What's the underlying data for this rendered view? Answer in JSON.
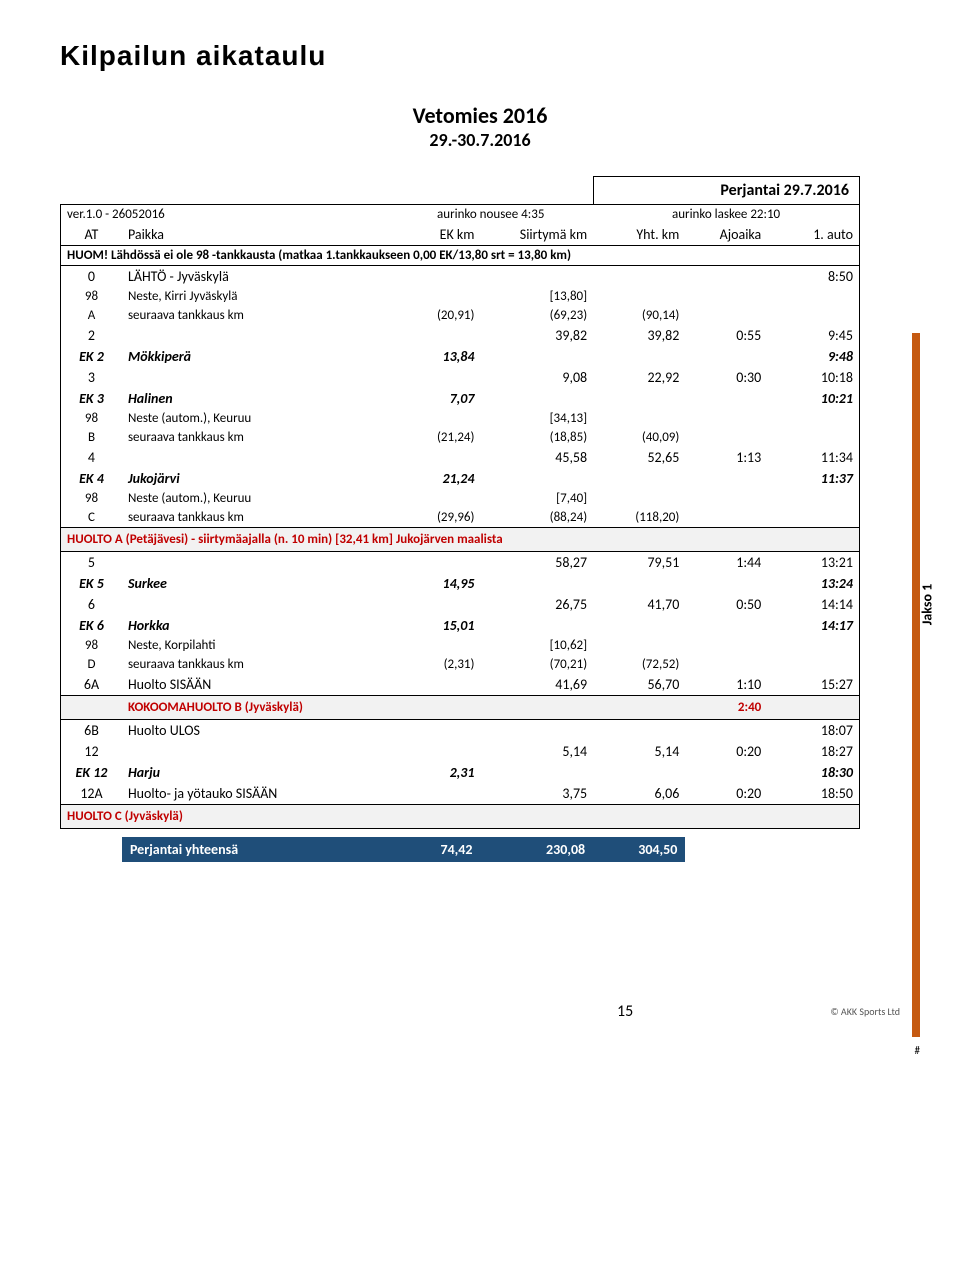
{
  "title": "Kilpailun aikataulu",
  "event": {
    "name": "Vetomies 2016",
    "dates": "29.-30.7.2016"
  },
  "header": {
    "date_label": "Perjantai 29.7.2016",
    "version": "ver.1.0 - 26052016",
    "sunrise": "aurinko nousee 4:35",
    "sunset": "aurinko laskee 22:10",
    "cols": {
      "at": "AT",
      "paikka": "Paikka",
      "ekkm": "EK km",
      "siirtyma": "Siirtymä km",
      "yht": "Yht. km",
      "ajoaika": "Ajoaika",
      "firstcar": "1. auto"
    },
    "huom": "HUOM! Lähdössä ei ole 98 -tankkausta (matkaa 1.tankkaukseen 0,00 EK/13,80 srt = 13,80 km)"
  },
  "rows": [
    {
      "at": "0",
      "paikka": "LÄHTÖ - Jyväskylä",
      "ek": "",
      "siir": "",
      "yht": "",
      "aika": "",
      "auto": "8:50"
    },
    {
      "at": "98",
      "paikka": "Neste, Kirri Jyväskylä",
      "ek": "",
      "siir": "[13,80]",
      "yht": "",
      "aika": "",
      "auto": "",
      "fuel": true
    },
    {
      "at": "A",
      "paikka": "seuraava tankkaus km",
      "ek": "(20,91)",
      "siir": "(69,23)",
      "yht": "(90,14)",
      "aika": "",
      "auto": "",
      "fuel": true
    },
    {
      "at": "2",
      "paikka": "",
      "ek": "",
      "siir": "39,82",
      "yht": "39,82",
      "aika": "0:55",
      "auto": "9:45"
    },
    {
      "at": "EK 2",
      "paikka": "Mökkiperä",
      "ek": "13,84",
      "siir": "",
      "yht": "",
      "aika": "",
      "auto": "9:48",
      "ekrow": true
    },
    {
      "at": "3",
      "paikka": "",
      "ek": "",
      "siir": "9,08",
      "yht": "22,92",
      "aika": "0:30",
      "auto": "10:18"
    },
    {
      "at": "EK 3",
      "paikka": "Halinen",
      "ek": "7,07",
      "siir": "",
      "yht": "",
      "aika": "",
      "auto": "10:21",
      "ekrow": true
    },
    {
      "at": "98",
      "paikka": "Neste (autom.), Keuruu",
      "ek": "",
      "siir": "[34,13]",
      "yht": "",
      "aika": "",
      "auto": "",
      "fuel": true
    },
    {
      "at": "B",
      "paikka": "seuraava tankkaus km",
      "ek": "(21,24)",
      "siir": "(18,85)",
      "yht": "(40,09)",
      "aika": "",
      "auto": "",
      "fuel": true
    },
    {
      "at": "4",
      "paikka": "",
      "ek": "",
      "siir": "45,58",
      "yht": "52,65",
      "aika": "1:13",
      "auto": "11:34"
    },
    {
      "at": "EK 4",
      "paikka": "Jukojärvi",
      "ek": "21,24",
      "siir": "",
      "yht": "",
      "aika": "",
      "auto": "11:37",
      "ekrow": true
    },
    {
      "at": "98",
      "paikka": "Neste (autom.), Keuruu",
      "ek": "",
      "siir": "[7,40]",
      "yht": "",
      "aika": "",
      "auto": "",
      "fuel": true
    },
    {
      "at": "C",
      "paikka": "seuraava tankkaus km",
      "ek": "(29,96)",
      "siir": "(88,24)",
      "yht": "(118,20)",
      "aika": "",
      "auto": "",
      "fuel": true
    },
    {
      "huolto": true,
      "text": "HUOLTO A (Petäjävesi) - siirtymäajalla (n. 10 min) [32,41 km] Jukojärven maalista"
    },
    {
      "at": "5",
      "paikka": "",
      "ek": "",
      "siir": "58,27",
      "yht": "79,51",
      "aika": "1:44",
      "auto": "13:21"
    },
    {
      "at": "EK 5",
      "paikka": "Surkee",
      "ek": "14,95",
      "siir": "",
      "yht": "",
      "aika": "",
      "auto": "13:24",
      "ekrow": true
    },
    {
      "at": "6",
      "paikka": "",
      "ek": "",
      "siir": "26,75",
      "yht": "41,70",
      "aika": "0:50",
      "auto": "14:14"
    },
    {
      "at": "EK 6",
      "paikka": "Horkka",
      "ek": "15,01",
      "siir": "",
      "yht": "",
      "aika": "",
      "auto": "14:17",
      "ekrow": true
    },
    {
      "at": "98",
      "paikka": "Neste, Korpilahti",
      "ek": "",
      "siir": "[10,62]",
      "yht": "",
      "aika": "",
      "auto": "",
      "fuel": true
    },
    {
      "at": "D",
      "paikka": "seuraava tankkaus km",
      "ek": "(2,31)",
      "siir": "(70,21)",
      "yht": "(72,52)",
      "aika": "",
      "auto": "",
      "fuel": true
    },
    {
      "at": "6A",
      "paikka": "Huolto SISÄÄN",
      "ek": "",
      "siir": "41,69",
      "yht": "56,70",
      "aika": "1:10",
      "auto": "15:27"
    },
    {
      "kokoomarow": true,
      "text": "KOKOOMAHUOLTO B (Jyväskylä)",
      "aika": "2:40"
    },
    {
      "at": "6B",
      "paikka": "Huolto ULOS",
      "ek": "",
      "siir": "",
      "yht": "",
      "aika": "",
      "auto": "18:07"
    },
    {
      "at": "12",
      "paikka": "",
      "ek": "",
      "siir": "5,14",
      "yht": "5,14",
      "aika": "0:20",
      "auto": "18:27"
    },
    {
      "at": "EK 12",
      "paikka": "Harju",
      "ek": "2,31",
      "siir": "",
      "yht": "",
      "aika": "",
      "auto": "18:30",
      "ekrow": true
    },
    {
      "at": "12A",
      "paikka": "Huolto- ja yötauko SISÄÄN",
      "ek": "",
      "siir": "3,75",
      "yht": "6,06",
      "aika": "0:20",
      "auto": "18:50"
    },
    {
      "huolto": true,
      "text": "HUOLTO C (Jyväskylä)"
    }
  ],
  "total": {
    "label": "Perjantai yhteensä",
    "ek": "74,42",
    "siir": "230,08",
    "yht": "304,50"
  },
  "side": {
    "label": "Jakso 1",
    "color": "#c55a11",
    "hash": "#"
  },
  "footer": {
    "page": "15",
    "copy": "© AKK Sports Ltd"
  }
}
